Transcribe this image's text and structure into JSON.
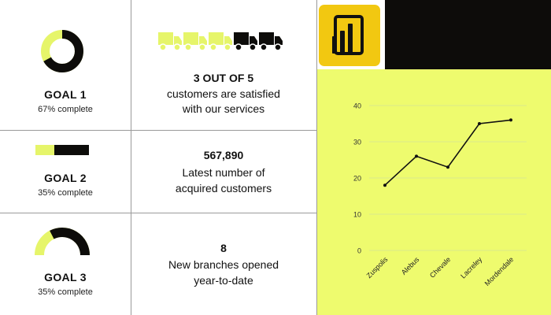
{
  "colors": {
    "accent_yellow": "#eefb6e",
    "truck_yellow": "#e6f56a",
    "dark": "#0d0c0a",
    "logo_yellow": "#f2c811",
    "grid": "#d9e88c"
  },
  "goals": [
    {
      "title": "GOAL 1",
      "subtitle": "67% complete",
      "visual": "donut",
      "progress": 0.67
    },
    {
      "title": "GOAL 2",
      "subtitle": "35% complete",
      "visual": "bar",
      "progress": 0.35
    },
    {
      "title": "GOAL 3",
      "subtitle": "35% complete",
      "visual": "half-donut",
      "progress": 0.35
    }
  ],
  "stats": [
    {
      "headline": "3 OUT OF 5",
      "lines": [
        "customers are satisfied",
        "with our services"
      ],
      "icon": "truck-icon",
      "icon_count": 5,
      "icon_highlighted": 3
    },
    {
      "headline": "567,890",
      "lines": [
        "Latest number of",
        "acquired customers"
      ]
    },
    {
      "headline": "8",
      "lines": [
        "New branches opened",
        "year-to-date"
      ]
    }
  ],
  "logo": {
    "icon": "power-bi-logo"
  },
  "chart_data": {
    "type": "line",
    "categories": [
      "Zuspolis",
      "Alebus",
      "Chevale",
      "Lacreley",
      "Mordendale"
    ],
    "values": [
      18,
      26,
      23,
      35,
      36
    ],
    "yticks": [
      "0",
      "10",
      "20",
      "30",
      "40"
    ],
    "ylim": [
      0,
      40
    ],
    "grid": true,
    "title": "",
    "xlabel": "",
    "ylabel": ""
  }
}
